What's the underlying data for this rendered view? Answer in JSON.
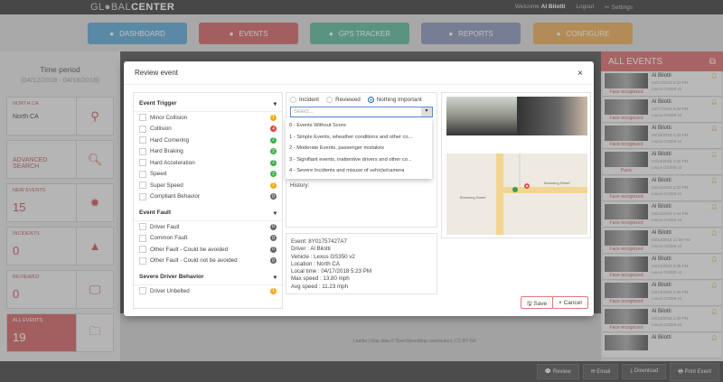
{
  "header": {
    "logo": "GL●BAL",
    "logo_bold": "CENTER",
    "welcome": "Welcome",
    "user": "Al Bilotti",
    "logout": "Logout",
    "settings": "Settings"
  },
  "nav": [
    {
      "label": "DASHBOARD",
      "color": "#5ba7d3",
      "icon": "dashboard-icon"
    },
    {
      "label": "EVENTS",
      "color": "#d06363",
      "icon": "warning-icon"
    },
    {
      "label": "GPS TRACKER",
      "color": "#5bb79a",
      "icon": "map-pin-icon"
    },
    {
      "label": "REPORTS",
      "color": "#8a93b8",
      "icon": "pie-icon"
    },
    {
      "label": "CONFIGURE",
      "color": "#e9aa56",
      "icon": "user-icon"
    }
  ],
  "sidebar": {
    "title": "Time period",
    "range": "(04/12/2018 - 04/18/2018)",
    "cards": [
      {
        "label": "NORTH CA",
        "value": "North CA",
        "icon": "map-pin-icon"
      },
      {
        "label": "ADVANCED SEARCH",
        "value": "",
        "icon": "search-icon"
      },
      {
        "label": "NEW EVENTS",
        "value": "15",
        "icon": "alert-icon"
      },
      {
        "label": "INCIDENTS",
        "value": "0",
        "icon": "warning-icon"
      },
      {
        "label": "REVIEWED",
        "value": "0",
        "icon": "monitor-icon"
      },
      {
        "label": "ALL EVENTS",
        "value": "19",
        "icon": "folders-icon"
      }
    ]
  },
  "modal": {
    "title": "Review event",
    "close": "×",
    "groups": [
      {
        "title": "Event Trigger",
        "items": [
          {
            "label": "Minor Collision",
            "count": "1",
            "color": "#f0ad1a"
          },
          {
            "label": "Collision",
            "count": "4",
            "color": "#e04040"
          },
          {
            "label": "Hard Cornering",
            "count": "2",
            "color": "#3fae49"
          },
          {
            "label": "Hard Braking",
            "count": "2",
            "color": "#3fae49"
          },
          {
            "label": "Hard Acceleration",
            "count": "2",
            "color": "#3fae49"
          },
          {
            "label": "Speed",
            "count": "2",
            "color": "#3fae49"
          },
          {
            "label": "Super Speed",
            "count": "1",
            "color": "#f0ad1a"
          },
          {
            "label": "Compliant Behavior",
            "count": "0",
            "color": "#666666"
          }
        ]
      },
      {
        "title": "Event Fault",
        "items": [
          {
            "label": "Driver Fault",
            "count": "0",
            "color": "#666666"
          },
          {
            "label": "Common Fault",
            "count": "0",
            "color": "#666666"
          },
          {
            "label": "Other Fault - Could be avoided",
            "count": "0",
            "color": "#666666"
          },
          {
            "label": "Other Fault - Could not be avoided",
            "count": "0",
            "color": "#666666"
          }
        ]
      },
      {
        "title": "Severe Driver Behavior",
        "items": [
          {
            "label": "Driver Unbelted",
            "count": "1",
            "color": "#f0ad1a"
          }
        ]
      }
    ],
    "radios": [
      "Incident",
      "Reviewed",
      "Nothing Important"
    ],
    "selected_radio": "Nothing Important",
    "select_placeholder": "Select...",
    "options": [
      "0 - Events Without Score",
      "1 - Simple Events, wheather conditions and other co...",
      "2 - Moderate Events, passenger mistakes",
      "3 - Signifiant events, inattentive drivers and other co...",
      "4 - Severe Incidents and misuse of vehicle/camera"
    ],
    "history_label": "History:",
    "details": [
      "Event: 8Y01757427A7",
      "Driver : Al Bilotti",
      "Vehicle : Lexus GS350 v2",
      "Location : North CA",
      "Local time : 04/17/2018 5:23 PM",
      "Max speed : 13.80 mph",
      "Avg speed : 11.23 mph"
    ],
    "map_labels": [
      "Browning Street",
      "Browning Street"
    ],
    "save": "Save",
    "cancel": "Cancel"
  },
  "map_attribution": "Leaflet | Map data © OpenStreetMap contributors, CC-BY-SA",
  "events_panel": {
    "title": "ALL EVENTS",
    "events": [
      {
        "driver": "Al Bilotti",
        "time": "04/17/2018 5:23 PM",
        "vehicle": "Lexus GS350 v2",
        "status": "Face recognized"
      },
      {
        "driver": "Al Bilotti",
        "time": "04/17/2018 5:18 PM",
        "vehicle": "Lexus GS350 v2",
        "status": "Face recognized"
      },
      {
        "driver": "Al Bilotti",
        "time": "04/15/2018 1:25 PM",
        "vehicle": "Lexus GS350 v2",
        "status": "Face recognized"
      },
      {
        "driver": "Al Bilotti",
        "time": "04/14/2018 2:34 PM",
        "vehicle": "Lexus GS350 v2",
        "status": "Panic"
      },
      {
        "driver": "Al Bilotti",
        "time": "04/14/2018 2:20 PM",
        "vehicle": "Lexus GS350 v2",
        "status": "Face recognized"
      },
      {
        "driver": "Al Bilotti",
        "time": "04/14/2018 1:44 PM",
        "vehicle": "Lexus GS350 v2",
        "status": "Face recognized"
      },
      {
        "driver": "Al Bilotti",
        "time": "04/14/2018 11:38 AM",
        "vehicle": "Lexus GS350 v2",
        "status": "Face recognized"
      },
      {
        "driver": "Al Bilotti",
        "time": "04/13/2018 2:46 PM",
        "vehicle": "Lexus GS350 v2",
        "status": "Face recognized"
      },
      {
        "driver": "Al Bilotti",
        "time": "04/13/2018 2:39 PM",
        "vehicle": "Lexus GS350 v2",
        "status": "Face recognized"
      },
      {
        "driver": "Al Bilotti",
        "time": "04/13/2018 1:28 PM",
        "vehicle": "Lexus GS350 v2",
        "status": "Face recognized"
      },
      {
        "driver": "Al Bilotti",
        "time": "",
        "vehicle": "",
        "status": ""
      }
    ]
  },
  "footer": [
    "Review",
    "Email",
    "Download",
    "Print Event"
  ]
}
